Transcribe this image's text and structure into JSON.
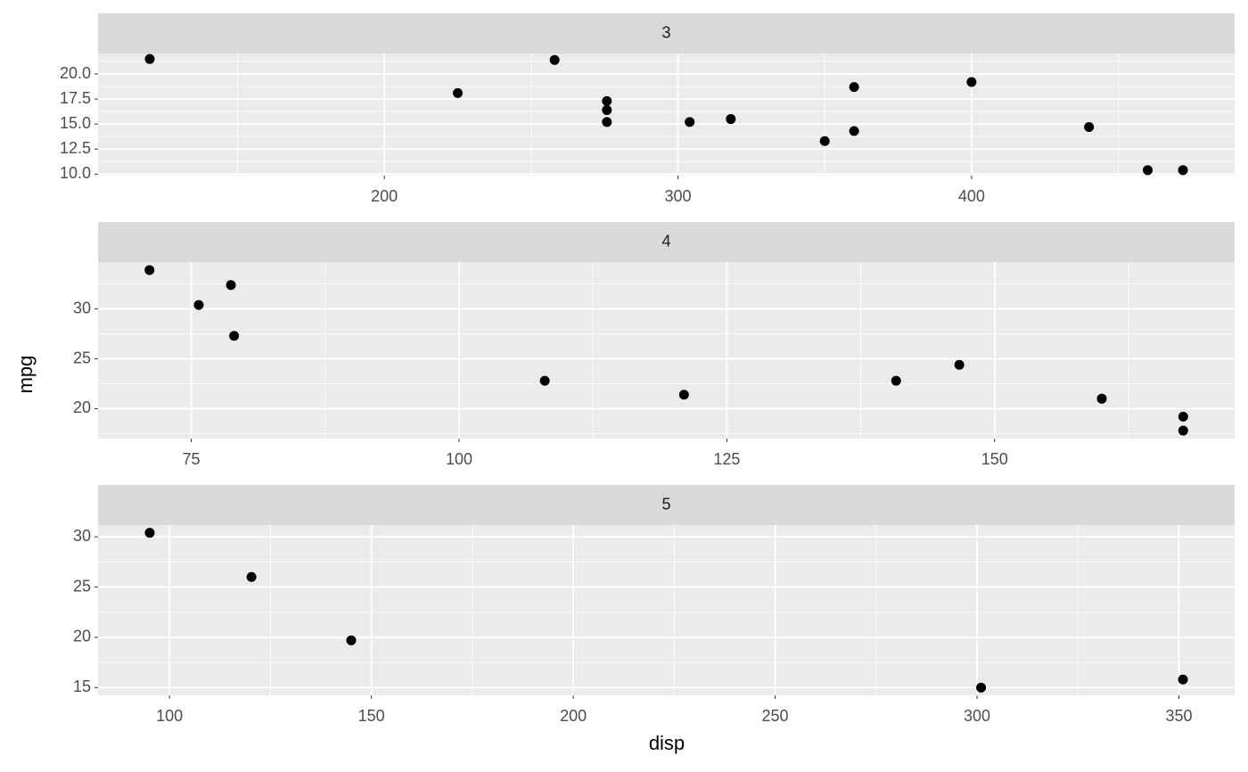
{
  "chart_data": {
    "type": "scatter",
    "xlabel": "disp",
    "ylabel": "mpg",
    "color": "#000000",
    "grid": true,
    "panels": [
      {
        "title": "3",
        "x": [
          258,
          360,
          225,
          360,
          275.8,
          275.8,
          275.8,
          472,
          460,
          440,
          120.1,
          318,
          304,
          350,
          400
        ],
        "values": [
          21.4,
          18.7,
          18.1,
          14.3,
          16.4,
          17.3,
          15.2,
          10.4,
          10.4,
          14.7,
          21.5,
          15.5,
          15.2,
          13.3,
          19.2
        ],
        "xlim": [
          102.5,
          489.6
        ],
        "ylim": [
          9.85,
          22.05
        ],
        "xticks": [
          200,
          300,
          400
        ],
        "yticks": [
          {
            "value": 10,
            "label": "10.0"
          },
          12.5,
          {
            "value": 15,
            "label": "15.0"
          },
          17.5,
          {
            "value": 20,
            "label": "20.0"
          }
        ]
      },
      {
        "title": "4",
        "x": [
          160,
          160,
          108,
          146.7,
          140.8,
          167.6,
          167.6,
          78.7,
          75.7,
          71.1,
          79,
          121
        ],
        "values": [
          21,
          21,
          22.8,
          24.4,
          22.8,
          19.2,
          17.8,
          32.4,
          30.4,
          33.9,
          27.3,
          21.4
        ],
        "xlim": [
          66.3,
          172.4
        ],
        "ylim": [
          17.0,
          34.7
        ],
        "xticks": [
          75,
          100,
          125,
          150
        ],
        "yticks": [
          20,
          25,
          30
        ]
      },
      {
        "title": "5",
        "x": [
          120.3,
          95.1,
          351,
          145,
          301
        ],
        "values": [
          26,
          30.4,
          15.8,
          19.7,
          15
        ],
        "xlim": [
          82.3,
          363.8
        ],
        "ylim": [
          14.23,
          31.17
        ],
        "xticks": [
          100,
          150,
          200,
          250,
          300,
          350
        ],
        "yticks": [
          15,
          20,
          25,
          30
        ]
      }
    ]
  }
}
